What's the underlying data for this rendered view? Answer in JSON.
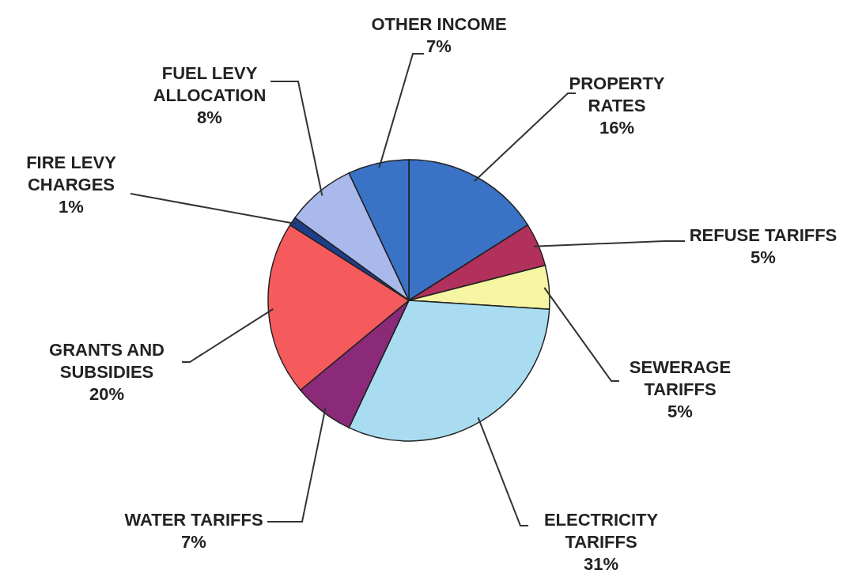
{
  "chart_data": {
    "type": "pie",
    "categories": [
      "PROPERTY RATES",
      "REFUSE TARIFFS",
      "SEWERAGE TARIFFS",
      "ELECTRICITY TARIFFS",
      "WATER TARIFFS",
      "GRANTS AND SUBSIDIES",
      "FIRE LEVY CHARGES",
      "FUEL LEVY ALLOCATION",
      "OTHER INCOME"
    ],
    "values": [
      16,
      5,
      5,
      31,
      7,
      20,
      1,
      8,
      7
    ],
    "colors": [
      "#3a72c6",
      "#b2305c",
      "#f6f6a2",
      "#a9dcf1",
      "#8a2a78",
      "#f55a5c",
      "#1e3d8a",
      "#a9b9ec",
      "#3a72c6"
    ],
    "value_labels": [
      "16%",
      "5%",
      "5%",
      "31%",
      "7%",
      "20%",
      "1%",
      "8%",
      "7%"
    ]
  }
}
